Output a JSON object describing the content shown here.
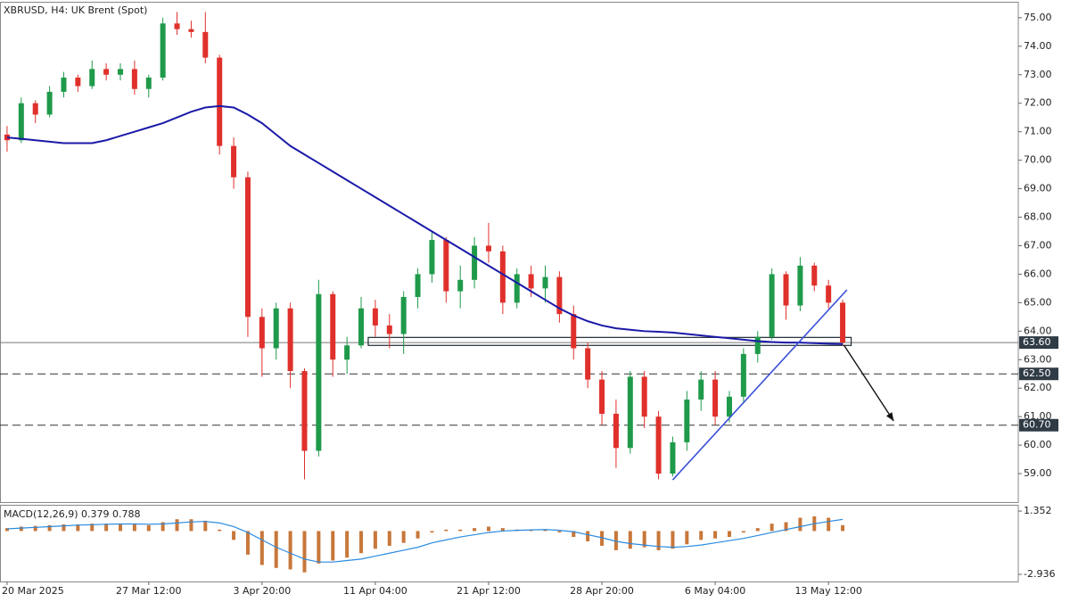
{
  "chart_data": [
    {
      "type": "candlestick",
      "title": "XBRUSD, H4:  UK Brent (Spot)",
      "open": [
        70.9,
        70.7,
        72.0,
        71.6,
        72.4,
        72.9,
        72.6,
        73.2,
        73.0,
        73.2,
        72.5,
        72.9,
        74.8,
        74.6,
        74.5,
        73.6,
        70.5,
        69.4,
        64.5,
        63.4,
        64.8,
        62.6,
        59.8,
        65.3,
        63.0,
        63.5,
        64.8,
        64.2,
        63.9,
        65.2,
        66.0,
        67.2,
        65.4,
        65.8,
        67.0,
        66.8,
        65.0,
        66.0,
        65.5,
        65.9,
        64.6,
        63.4,
        62.3,
        61.1,
        59.9,
        62.4,
        61.0,
        59.0,
        60.1,
        61.6,
        62.3,
        61.0,
        61.7,
        63.2,
        63.8,
        66.0,
        64.9,
        66.3,
        65.6,
        65.0
      ],
      "high": [
        71.2,
        72.2,
        72.1,
        72.6,
        73.1,
        73.0,
        73.5,
        73.4,
        73.4,
        73.5,
        73.0,
        75.0,
        75.2,
        74.9,
        75.2,
        73.7,
        70.8,
        69.6,
        64.8,
        65.0,
        65.0,
        62.7,
        65.8,
        65.4,
        63.8,
        65.2,
        65.1,
        64.6,
        65.4,
        66.2,
        67.5,
        67.3,
        66.3,
        67.3,
        67.8,
        67.0,
        66.2,
        66.3,
        66.3,
        66.1,
        64.9,
        63.6,
        62.6,
        61.6,
        62.6,
        62.6,
        61.2,
        60.3,
        61.9,
        62.6,
        62.6,
        61.9,
        63.4,
        64.0,
        66.2,
        66.1,
        66.6,
        66.4,
        65.8,
        65.1
      ],
      "low": [
        70.3,
        70.6,
        71.3,
        71.5,
        72.2,
        72.4,
        72.5,
        72.8,
        72.8,
        72.3,
        72.2,
        72.8,
        74.4,
        74.3,
        73.4,
        70.2,
        69.0,
        63.8,
        62.4,
        63.0,
        62.0,
        58.8,
        59.6,
        62.4,
        62.5,
        63.4,
        63.8,
        63.4,
        63.2,
        64.8,
        65.7,
        65.0,
        64.8,
        65.5,
        66.4,
        64.6,
        64.8,
        65.2,
        65.0,
        64.3,
        63.0,
        62.0,
        60.7,
        59.2,
        59.7,
        60.6,
        58.8,
        58.9,
        59.8,
        61.2,
        60.7,
        60.8,
        61.5,
        62.9,
        63.7,
        64.4,
        64.7,
        65.4,
        64.8,
        63.5
      ],
      "close": [
        70.7,
        72.0,
        71.6,
        72.4,
        72.9,
        72.6,
        73.2,
        73.0,
        73.2,
        72.5,
        72.9,
        74.8,
        74.6,
        74.5,
        73.6,
        70.5,
        69.4,
        64.5,
        63.4,
        64.8,
        62.6,
        59.8,
        65.3,
        63.0,
        63.5,
        64.8,
        64.2,
        63.9,
        65.2,
        66.0,
        67.2,
        65.4,
        65.8,
        67.0,
        66.8,
        65.0,
        66.0,
        65.5,
        65.9,
        64.6,
        63.4,
        62.3,
        61.1,
        59.9,
        62.4,
        61.0,
        59.0,
        60.1,
        61.6,
        62.3,
        61.0,
        61.7,
        63.2,
        63.8,
        66.0,
        64.9,
        66.3,
        65.6,
        65.0,
        63.6
      ],
      "up_color": "#1f9a4a",
      "down_color": "#e0302b",
      "ma": {
        "color": "#1a1aa8",
        "values": [
          70.8,
          70.75,
          70.7,
          70.65,
          70.6,
          70.6,
          70.6,
          70.7,
          70.85,
          71.0,
          71.15,
          71.3,
          71.5,
          71.7,
          71.85,
          71.9,
          71.85,
          71.6,
          71.3,
          70.9,
          70.5,
          70.2,
          69.9,
          69.6,
          69.3,
          69.0,
          68.7,
          68.4,
          68.1,
          67.8,
          67.5,
          67.2,
          66.9,
          66.6,
          66.3,
          66.0,
          65.7,
          65.4,
          65.1,
          64.8,
          64.55,
          64.35,
          64.2,
          64.1,
          64.05,
          64.0,
          63.98,
          63.95,
          63.9,
          63.85,
          63.8,
          63.75,
          63.7,
          63.65,
          63.62,
          63.6,
          63.6,
          63.58,
          63.56,
          63.55
        ]
      },
      "xlim": [
        -0.5,
        71.4
      ],
      "xticks": [
        {
          "value": 0,
          "label": "20 Mar 2025"
        },
        {
          "value": 10,
          "label": "27 Mar 12:00"
        },
        {
          "value": 18,
          "label": "3 Apr 20:00"
        },
        {
          "value": 26,
          "label": "11 Apr 04:00"
        },
        {
          "value": 34,
          "label": "21 Apr 12:00"
        },
        {
          "value": 42,
          "label": "28 Apr 20:00"
        },
        {
          "value": 50,
          "label": "6 May 04:00"
        },
        {
          "value": 58,
          "label": "13 May 12:00"
        }
      ],
      "ylim": [
        58.0,
        75.56
      ],
      "yticks": [
        {
          "value": 59,
          "label": "59.00"
        },
        {
          "value": 60,
          "label": "60.00"
        },
        {
          "value": 61,
          "label": "61.00"
        },
        {
          "value": 62,
          "label": "62.00"
        },
        {
          "value": 63,
          "label": "63.00"
        },
        {
          "value": 64,
          "label": "64.00"
        },
        {
          "value": 65,
          "label": "65.00"
        },
        {
          "value": 66,
          "label": "66.00"
        },
        {
          "value": 67,
          "label": "67.00"
        },
        {
          "value": 68,
          "label": "68.00"
        },
        {
          "value": 69,
          "label": "69.00"
        },
        {
          "value": 70,
          "label": "70.00"
        },
        {
          "value": 71,
          "label": "71.00"
        },
        {
          "value": 72,
          "label": "72.00"
        },
        {
          "value": 73,
          "label": "73.00"
        },
        {
          "value": 74,
          "label": "74.00"
        },
        {
          "value": 75,
          "label": "75.00"
        }
      ],
      "levels": [
        {
          "value": 63.6,
          "label": "63.60",
          "style": "solid"
        },
        {
          "value": 62.5,
          "label": "62.50",
          "style": "dashed"
        },
        {
          "value": 60.7,
          "label": "60.70",
          "style": "dashed"
        }
      ],
      "zone": {
        "x": [
          25.5,
          59.6
        ],
        "y": [
          63.5,
          63.78
        ]
      },
      "trendline": {
        "color": "#3a4fd8",
        "x": [
          47.0,
          59.3
        ],
        "y": [
          58.78,
          65.45
        ]
      },
      "arrow": {
        "x": [
          59.1,
          62.6
        ],
        "y": [
          63.5,
          60.85
        ]
      }
    },
    {
      "type": "macd",
      "label": "MACD(12,26,9) 0.379 0.788",
      "histogram": [
        0.2,
        0.3,
        0.35,
        0.4,
        0.45,
        0.45,
        0.5,
        0.5,
        0.5,
        0.45,
        0.4,
        0.6,
        0.8,
        0.8,
        0.7,
        0.1,
        -0.6,
        -1.6,
        -2.3,
        -2.5,
        -2.6,
        -2.8,
        -2.2,
        -2.0,
        -1.8,
        -1.5,
        -1.2,
        -1.0,
        -0.8,
        -0.5,
        -0.1,
        0.1,
        0.1,
        0.2,
        0.3,
        0.2,
        0.1,
        0.1,
        0.1,
        -0.1,
        -0.4,
        -0.7,
        -1.0,
        -1.3,
        -1.2,
        -1.1,
        -1.3,
        -1.2,
        -0.9,
        -0.6,
        -0.5,
        -0.4,
        -0.1,
        0.2,
        0.5,
        0.6,
        0.9,
        1.0,
        0.9,
        0.4
      ],
      "signal": [
        0.15,
        0.2,
        0.25,
        0.3,
        0.35,
        0.4,
        0.43,
        0.46,
        0.48,
        0.48,
        0.46,
        0.48,
        0.55,
        0.62,
        0.65,
        0.55,
        0.3,
        -0.1,
        -0.6,
        -1.1,
        -1.5,
        -1.9,
        -2.1,
        -2.1,
        -2.0,
        -1.9,
        -1.7,
        -1.5,
        -1.3,
        -1.1,
        -0.8,
        -0.6,
        -0.4,
        -0.25,
        -0.1,
        0.0,
        0.05,
        0.08,
        0.1,
        0.05,
        -0.05,
        -0.25,
        -0.45,
        -0.7,
        -0.85,
        -0.95,
        -1.05,
        -1.1,
        -1.05,
        -0.95,
        -0.8,
        -0.65,
        -0.5,
        -0.3,
        -0.1,
        0.1,
        0.3,
        0.5,
        0.65,
        0.79
      ],
      "histogram_color": "#c8773a",
      "signal_color": "#2a8be0",
      "ylim": [
        -3.42,
        1.78
      ],
      "yticks": [
        1.352,
        -2.936
      ]
    }
  ]
}
